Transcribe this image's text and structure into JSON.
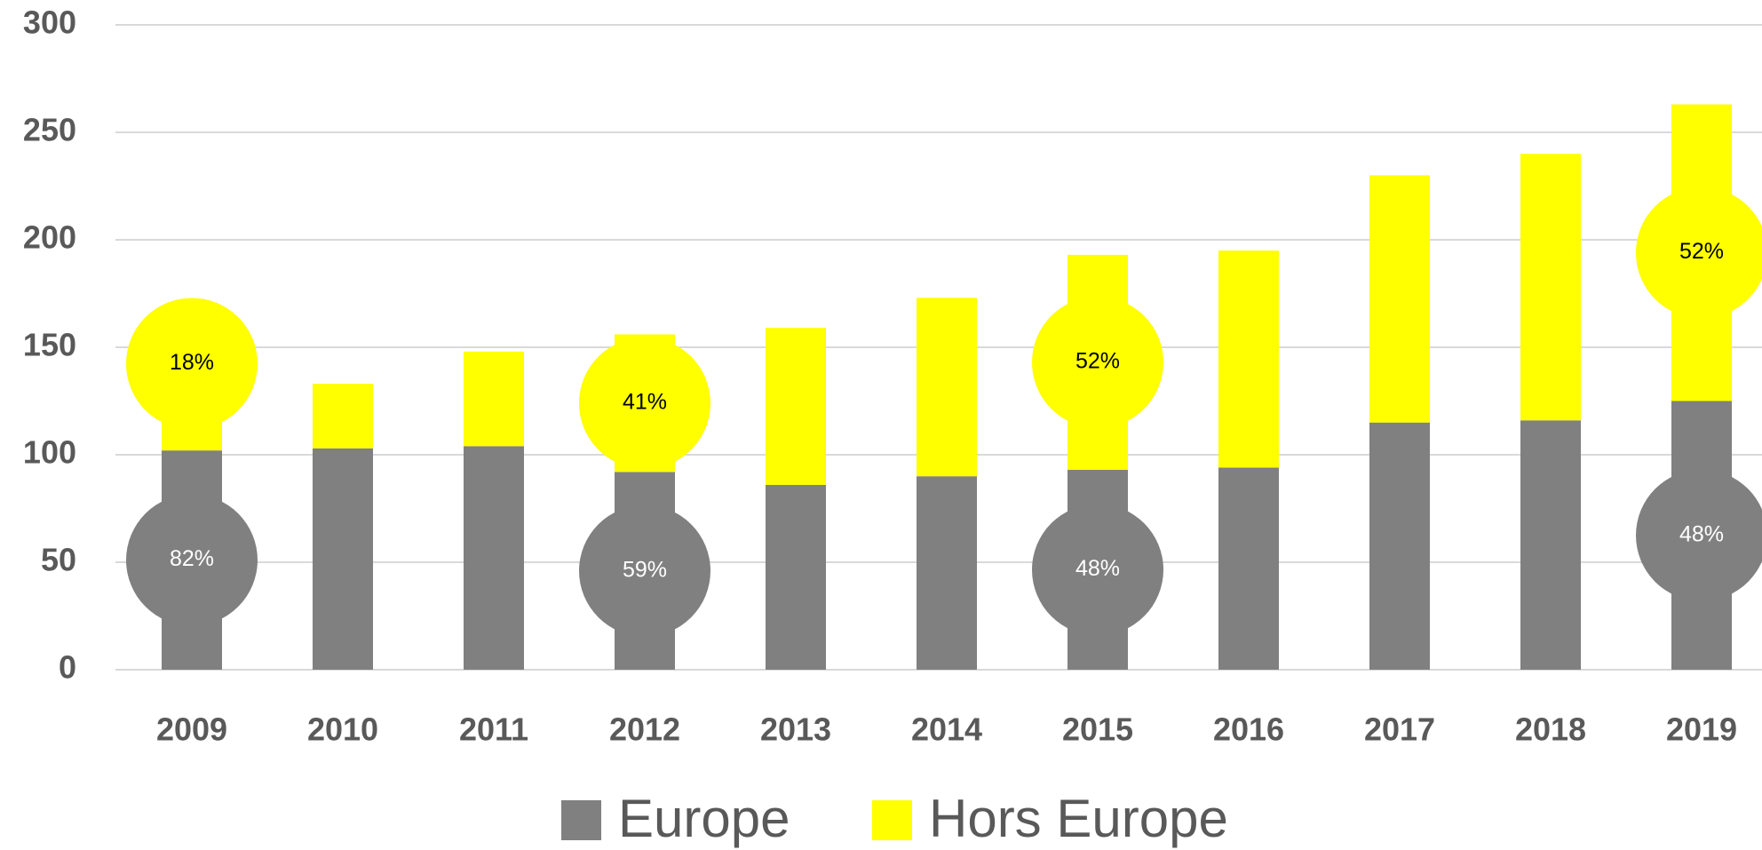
{
  "chart_data": {
    "type": "stacked_bar",
    "categories": [
      "2009",
      "2010",
      "2011",
      "2012",
      "2013",
      "2014",
      "2015",
      "2016",
      "2017",
      "2018",
      "2019"
    ],
    "series": [
      {
        "name": "Europe",
        "color": "#808080",
        "values": [
          102,
          103,
          104,
          92,
          86,
          90,
          93,
          94,
          115,
          116,
          125
        ]
      },
      {
        "name": "Hors Europe",
        "color": "#ffff00",
        "values": [
          23,
          30,
          44,
          64,
          73,
          83,
          100,
          101,
          115,
          124,
          138
        ]
      }
    ],
    "annotations": [
      {
        "x": "2009",
        "labels": [
          "82%",
          "18%"
        ]
      },
      {
        "x": "2012",
        "labels": [
          "59%",
          "41%"
        ]
      },
      {
        "x": "2015",
        "labels": [
          "48%",
          "52%"
        ]
      },
      {
        "x": "2019",
        "labels": [
          "48%",
          "52%"
        ]
      }
    ],
    "ylim": [
      0,
      300
    ],
    "yticks": [
      0,
      50,
      100,
      150,
      200,
      250,
      300
    ],
    "grid": true,
    "legend": "bottom"
  }
}
